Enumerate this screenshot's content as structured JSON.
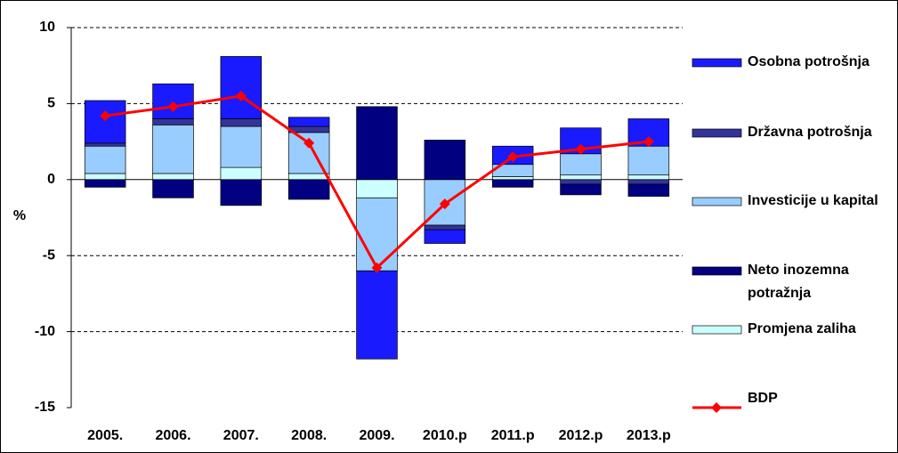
{
  "chart_data": {
    "type": "bar",
    "y_label": "%",
    "categories": [
      "2005.",
      "2006.",
      "2007.",
      "2008.",
      "2009.",
      "2010.p",
      "2011.p",
      "2012.p",
      "2013.p"
    ],
    "series": [
      {
        "name": "Osobna potrošnja",
        "color": "#1a1aff",
        "values": [
          2.8,
          2.3,
          4.1,
          0.6,
          -5.8,
          -0.9,
          1.2,
          1.7,
          1.8
        ]
      },
      {
        "name": "Državna potrošnja",
        "color": "#333399",
        "values": [
          0.2,
          0.4,
          0.5,
          0.4,
          0,
          -0.3,
          0,
          -0.3,
          -0.3
        ]
      },
      {
        "name": "Investicije u kapital",
        "color": "#99ccff",
        "values": [
          1.8,
          3.2,
          2.7,
          2.7,
          -4.8,
          -3.0,
          0.8,
          1.4,
          1.9
        ]
      },
      {
        "name": "Neto inozemna potražnja",
        "color": "#000080",
        "values": [
          -0.5,
          -1.2,
          -1.7,
          -1.3,
          4.8,
          2.6,
          -0.5,
          -0.7,
          -0.8
        ]
      },
      {
        "name": "Promjena zaliha",
        "color": "#ccffff",
        "values": [
          0.4,
          0.4,
          0.8,
          0.4,
          -1.2,
          0,
          0.2,
          0.3,
          0.3
        ]
      },
      {
        "name": "BDP",
        "color": "#ff0000",
        "type": "line",
        "values": [
          4.2,
          4.8,
          5.5,
          2.4,
          -5.8,
          -1.6,
          1.5,
          2.0,
          2.5
        ]
      }
    ],
    "ylim": [
      -15,
      10
    ],
    "yticks": [
      -15,
      -10,
      -5,
      0,
      5,
      10
    ],
    "grid": true,
    "legend": "right"
  }
}
